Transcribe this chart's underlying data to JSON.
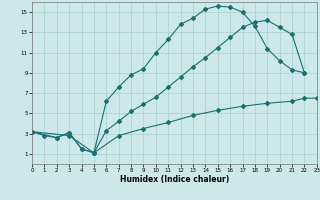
{
  "xlabel": "Humidex (Indice chaleur)",
  "bg_color": "#cce8e8",
  "grid_color": "#aacfcf",
  "line_color": "#1a7070",
  "xlim": [
    0,
    23
  ],
  "ylim": [
    0,
    16
  ],
  "xticks": [
    0,
    1,
    2,
    3,
    4,
    5,
    6,
    7,
    8,
    9,
    10,
    11,
    12,
    13,
    14,
    15,
    16,
    17,
    18,
    19,
    20,
    21,
    22,
    23
  ],
  "yticks": [
    1,
    3,
    5,
    7,
    9,
    11,
    13,
    15
  ],
  "line1_x": [
    0,
    1,
    2,
    3,
    4,
    5,
    6,
    7,
    8,
    9,
    10,
    11,
    12,
    13,
    14,
    15,
    16,
    17,
    18,
    19,
    20,
    21,
    22
  ],
  "line1_y": [
    3.2,
    2.8,
    2.6,
    3.1,
    1.5,
    1.1,
    6.2,
    7.6,
    8.8,
    9.4,
    11.0,
    12.3,
    13.8,
    14.4,
    15.3,
    15.6,
    15.5,
    15.0,
    13.6,
    11.4,
    10.2,
    9.3,
    9.0
  ],
  "line2_x": [
    0,
    2,
    3,
    4,
    5,
    6,
    7,
    8,
    9,
    10,
    11,
    12,
    13,
    14,
    15,
    16,
    17,
    18,
    19,
    20,
    21,
    22
  ],
  "line2_y": [
    3.2,
    2.6,
    3.1,
    1.5,
    1.1,
    3.3,
    4.2,
    5.2,
    5.9,
    6.6,
    7.6,
    8.6,
    9.6,
    10.5,
    11.5,
    12.5,
    13.5,
    14.0,
    14.2,
    13.5,
    12.8,
    9.0
  ],
  "line3_x": [
    0,
    3,
    5,
    7,
    9,
    11,
    13,
    15,
    17,
    19,
    21,
    22,
    23
  ],
  "line3_y": [
    3.2,
    2.8,
    1.1,
    2.8,
    3.5,
    4.1,
    4.8,
    5.3,
    5.7,
    6.0,
    6.2,
    6.5,
    6.5
  ]
}
